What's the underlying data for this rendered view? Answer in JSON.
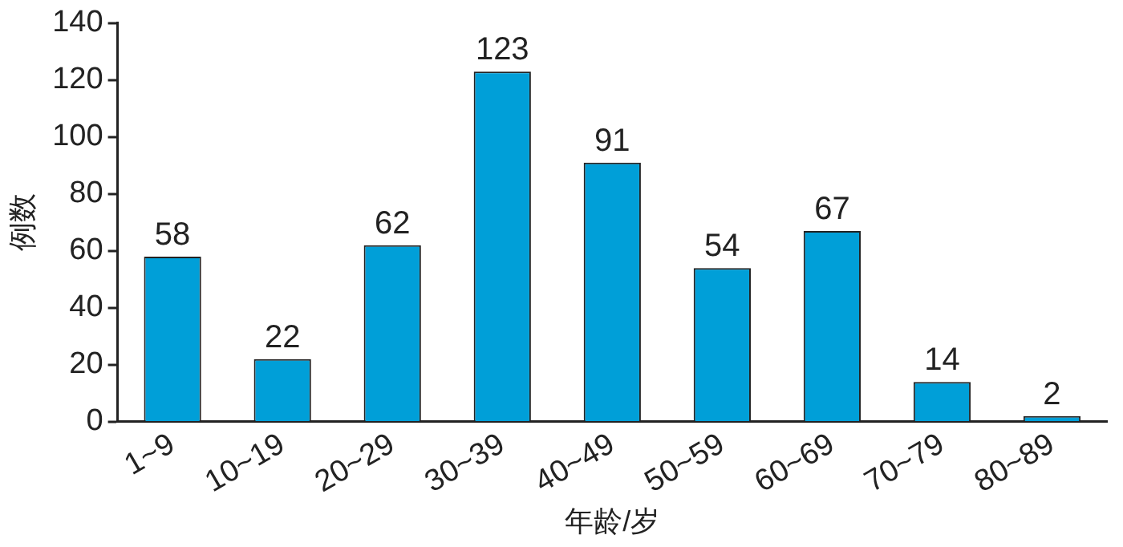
{
  "chart_data": {
    "type": "bar",
    "xlabel": "年龄/岁",
    "ylabel": "例数",
    "categories": [
      "1~9",
      "10~19",
      "20~29",
      "30~39",
      "40~49",
      "50~59",
      "60~69",
      "70~79",
      "80~89"
    ],
    "values": [
      58,
      22,
      62,
      123,
      91,
      54,
      67,
      14,
      2
    ],
    "color": "#009fd8",
    "ylim": [
      0,
      140
    ],
    "yticks": [
      0,
      20,
      40,
      60,
      80,
      100,
      120,
      140
    ],
    "grid": false,
    "legend": false,
    "data_labels": true
  }
}
